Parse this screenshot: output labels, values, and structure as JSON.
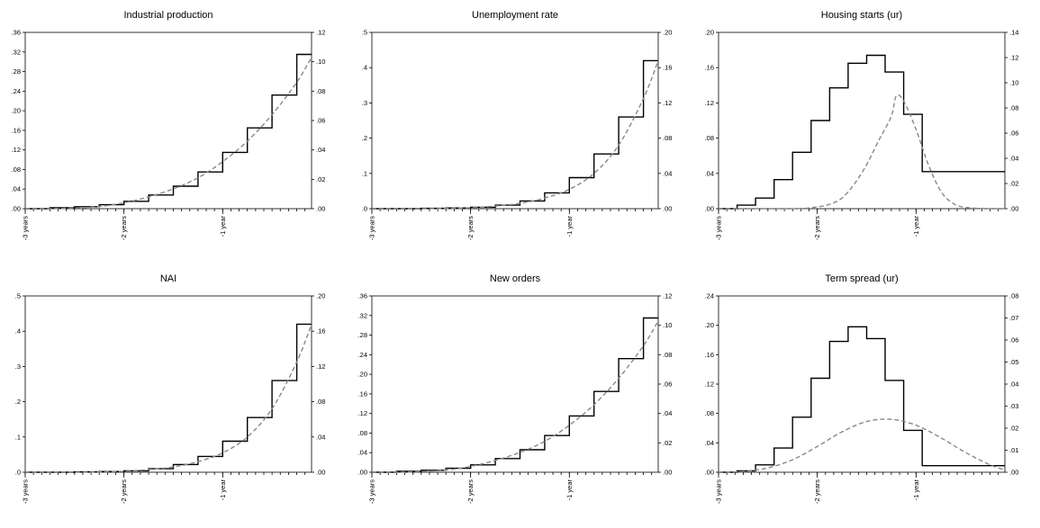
{
  "colors": {
    "step_series": "#000000",
    "dashed_series": "#888888"
  },
  "xaxis": {
    "range": [
      -3,
      -0.1
    ],
    "tick_labels": [
      {
        "value": -3,
        "label": "-3 years"
      },
      {
        "value": -2,
        "label": "-2 years"
      },
      {
        "value": -1,
        "label": "-1 year"
      }
    ]
  },
  "chart_data": [
    {
      "type": "line",
      "title": "Industrial production",
      "step": "weight",
      "dashed": "grow",
      "ylim_left": [
        0,
        0.36
      ],
      "ylim_right": [
        0,
        0.12
      ],
      "ticks_left": [
        ".00",
        ".04",
        ".08",
        ".12",
        ".16",
        ".20",
        ".24",
        ".28",
        ".32",
        ".36"
      ],
      "ticks_right": [
        ".00",
        ".02",
        ".04",
        ".06",
        ".08",
        ".10",
        ".12"
      ],
      "x_steps": [
        -3.0,
        -2.75,
        -2.5,
        -2.25,
        -2.0,
        -1.75,
        -1.5,
        -1.25,
        -1.0,
        -0.75,
        -0.5,
        -0.25
      ],
      "step_values": [
        0.0,
        0.002,
        0.004,
        0.008,
        0.015,
        0.028,
        0.046,
        0.075,
        0.115,
        0.165,
        0.232,
        0.315
      ],
      "dashed_x": [
        -3.0,
        -2.75,
        -2.5,
        -2.25,
        -2.0,
        -1.75,
        -1.5,
        -1.25,
        -1.0,
        -0.75,
        -0.5,
        -0.25,
        -0.1
      ],
      "dashed_values": [
        0.0,
        0.0,
        0.0005,
        0.0015,
        0.004,
        0.008,
        0.0135,
        0.021,
        0.032,
        0.046,
        0.064,
        0.086,
        0.103
      ]
    },
    {
      "type": "line",
      "title": "Unemployment rate",
      "step": "weight",
      "dashed": "grow",
      "ylim_left": [
        0,
        0.5
      ],
      "ylim_right": [
        0,
        0.2
      ],
      "ticks_left": [
        ".0",
        ".1",
        ".2",
        ".3",
        ".4",
        ".5"
      ],
      "ticks_right": [
        ".00",
        ".04",
        ".08",
        ".12",
        ".16",
        ".20"
      ],
      "x_steps": [
        -3.0,
        -2.75,
        -2.5,
        -2.25,
        -2.0,
        -1.75,
        -1.5,
        -1.25,
        -1.0,
        -0.75,
        -0.5,
        -0.25
      ],
      "step_values": [
        0.0,
        0.0,
        0.001,
        0.002,
        0.004,
        0.01,
        0.022,
        0.045,
        0.088,
        0.155,
        0.26,
        0.42
      ],
      "dashed_x": [
        -3.0,
        -2.5,
        -2.0,
        -1.75,
        -1.5,
        -1.25,
        -1.0,
        -0.75,
        -0.5,
        -0.25,
        -0.1
      ],
      "dashed_values": [
        0.0,
        0.0,
        0.001,
        0.003,
        0.006,
        0.012,
        0.022,
        0.04,
        0.072,
        0.125,
        0.168
      ]
    },
    {
      "type": "line",
      "title": "Housing starts (ur)",
      "step": "weight",
      "dashed": "weight",
      "ylim_left": [
        0,
        0.2
      ],
      "ylim_right": [
        0,
        0.14
      ],
      "ticks_left": [
        ".00",
        ".04",
        ".08",
        ".12",
        ".16",
        ".20"
      ],
      "ticks_right": [
        ".00",
        ".02",
        ".04",
        ".06",
        ".08",
        ".10",
        ".12",
        ".14"
      ],
      "x_steps": [
        -3.0,
        -2.8125,
        -2.625,
        -2.4375,
        -2.25,
        -2.0625,
        -1.875,
        -1.6875,
        -1.5,
        -1.3125,
        -1.125,
        -0.9375,
        -0.75,
        -0.5625,
        -0.375,
        -0.1875
      ],
      "step_values": [
        0.0,
        0.004,
        0.012,
        0.033,
        0.064,
        0.1,
        0.137,
        0.165,
        0.174,
        0.155,
        0.107,
        0.042,
        0.042,
        0.042,
        0.042,
        0.042
      ],
      "dashed_x": [
        -3.0,
        -2.25,
        -2.0,
        -1.875,
        -1.75,
        -1.625,
        -1.5,
        -1.375,
        -1.25,
        -1.2,
        -1.125,
        -1.0,
        -0.875,
        -0.75,
        -0.625,
        -0.5,
        -0.25,
        -0.1
      ],
      "dashed_values": [
        0.0,
        0.0,
        0.002,
        0.005,
        0.012,
        0.028,
        0.05,
        0.078,
        0.105,
        0.128,
        0.122,
        0.09,
        0.05,
        0.02,
        0.006,
        0.0015,
        0.0,
        0.0
      ]
    },
    {
      "type": "line",
      "title": "NAI",
      "step": "weight",
      "dashed": "grow",
      "ylim_left": [
        0,
        0.5
      ],
      "ylim_right": [
        0,
        0.2
      ],
      "ticks_left": [
        ".0",
        ".1",
        ".2",
        ".3",
        ".4",
        ".5"
      ],
      "ticks_right": [
        ".00",
        ".04",
        ".08",
        ".12",
        ".16",
        ".20"
      ],
      "x_steps": [
        -3.0,
        -2.75,
        -2.5,
        -2.25,
        -2.0,
        -1.75,
        -1.5,
        -1.25,
        -1.0,
        -0.75,
        -0.5,
        -0.25
      ],
      "step_values": [
        0.0,
        0.0,
        0.001,
        0.002,
        0.004,
        0.01,
        0.022,
        0.045,
        0.088,
        0.155,
        0.26,
        0.42
      ],
      "dashed_x": [
        -3.0,
        -2.5,
        -2.0,
        -1.75,
        -1.5,
        -1.25,
        -1.0,
        -0.75,
        -0.5,
        -0.25,
        -0.1
      ],
      "dashed_values": [
        0.0,
        0.0,
        0.001,
        0.003,
        0.006,
        0.012,
        0.022,
        0.04,
        0.072,
        0.125,
        0.168
      ]
    },
    {
      "type": "line",
      "title": "New orders",
      "step": "weight",
      "dashed": "grow",
      "ylim_left": [
        0,
        0.36
      ],
      "ylim_right": [
        0,
        0.12
      ],
      "ticks_left": [
        ".00",
        ".04",
        ".08",
        ".12",
        ".16",
        ".20",
        ".24",
        ".28",
        ".32",
        ".36"
      ],
      "ticks_right": [
        ".00",
        ".02",
        ".04",
        ".06",
        ".08",
        ".10",
        ".12"
      ],
      "x_steps": [
        -3.0,
        -2.75,
        -2.5,
        -2.25,
        -2.0,
        -1.75,
        -1.5,
        -1.25,
        -1.0,
        -0.75,
        -0.5,
        -0.25
      ],
      "step_values": [
        0.0,
        0.002,
        0.004,
        0.008,
        0.015,
        0.028,
        0.046,
        0.075,
        0.115,
        0.165,
        0.232,
        0.315
      ],
      "dashed_x": [
        -3.0,
        -2.75,
        -2.5,
        -2.25,
        -2.0,
        -1.75,
        -1.5,
        -1.25,
        -1.0,
        -0.75,
        -0.5,
        -0.25,
        -0.1
      ],
      "dashed_values": [
        0.0,
        0.0,
        0.0005,
        0.0015,
        0.004,
        0.008,
        0.0135,
        0.021,
        0.032,
        0.046,
        0.064,
        0.086,
        0.103
      ]
    },
    {
      "type": "line",
      "title": "Term spread (ur)",
      "step": "weight",
      "dashed": "weight",
      "ylim_left": [
        0,
        0.24
      ],
      "ylim_right": [
        0,
        0.08
      ],
      "ticks_left": [
        ".00",
        ".04",
        ".08",
        ".12",
        ".16",
        ".20",
        ".24"
      ],
      "ticks_right": [
        ".00",
        ".01",
        ".02",
        ".03",
        ".04",
        ".05",
        ".06",
        ".07",
        ".08"
      ],
      "x_steps": [
        -3.0,
        -2.8125,
        -2.625,
        -2.4375,
        -2.25,
        -2.0625,
        -1.875,
        -1.6875,
        -1.5,
        -1.3125,
        -1.125,
        -0.9375,
        -0.75,
        -0.5625,
        -0.375,
        -0.1875
      ],
      "step_values": [
        0.0,
        0.002,
        0.01,
        0.033,
        0.075,
        0.128,
        0.178,
        0.198,
        0.182,
        0.125,
        0.057,
        0.009,
        0.009,
        0.009,
        0.009,
        0.009
      ],
      "dashed_x": [
        -3.0,
        -2.75,
        -2.5,
        -2.25,
        -2.0,
        -1.75,
        -1.5,
        -1.25,
        -1.0,
        -0.75,
        -0.5,
        -0.25,
        -0.1
      ],
      "dashed_values": [
        0.0,
        0.001,
        0.006,
        0.017,
        0.035,
        0.055,
        0.069,
        0.072,
        0.064,
        0.047,
        0.027,
        0.01,
        0.003
      ]
    }
  ]
}
